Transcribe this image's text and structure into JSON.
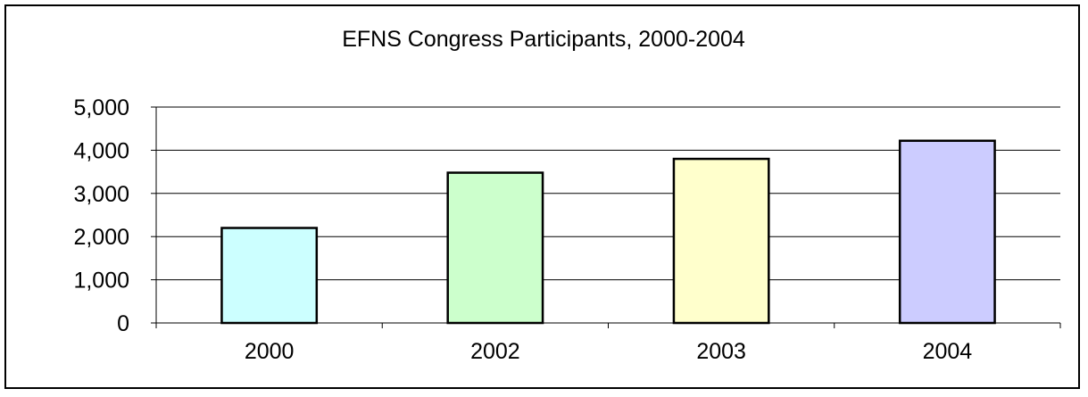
{
  "chart_data": {
    "type": "bar",
    "title": "EFNS Congress Participants, 2000-2004",
    "xlabel": "",
    "ylabel": "",
    "categories": [
      "2000",
      "2002",
      "2003",
      "2004"
    ],
    "values": [
      2200,
      3480,
      3800,
      4220
    ],
    "bar_colors": [
      "#CCFFFF",
      "#CCFFCC",
      "#FFFFCC",
      "#CCCCFF"
    ],
    "ylim": [
      0,
      5000
    ],
    "yticks": [
      0,
      1000,
      2000,
      3000,
      4000,
      5000
    ],
    "ytick_labels": [
      "0",
      "1,000",
      "2,000",
      "3,000",
      "4,000",
      "5,000"
    ],
    "grid": true,
    "legend": "none"
  }
}
